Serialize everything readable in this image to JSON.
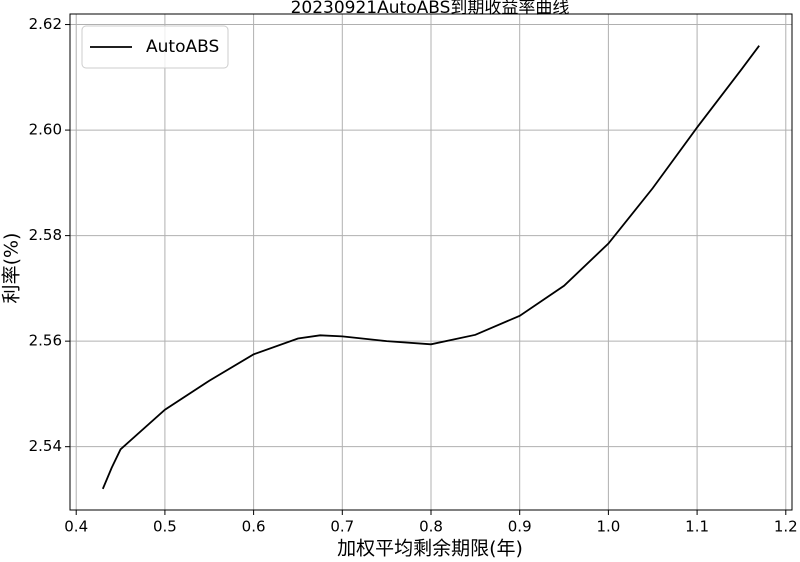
{
  "chart_data": {
    "type": "line",
    "title": "20230921AutoABS到期收益率曲线",
    "x_label": "加权平均剩余期限(年)",
    "y_label": "利率(%)",
    "x": [
      0.43,
      0.44,
      0.45,
      0.5,
      0.55,
      0.6,
      0.65,
      0.675,
      0.7,
      0.75,
      0.8,
      0.85,
      0.9,
      0.95,
      1.0,
      1.05,
      1.1,
      1.15,
      1.17
    ],
    "series": [
      {
        "name": "AutoABS",
        "color": "#000000",
        "values": [
          2.532,
          2.536,
          2.5395,
          2.547,
          2.5525,
          2.5575,
          2.5605,
          2.5611,
          2.5609,
          2.56,
          2.5594,
          2.5612,
          2.5648,
          2.5705,
          2.5785,
          2.589,
          2.6005,
          2.6115,
          2.616
        ]
      }
    ],
    "xlim": [
      0.393,
      1.207
    ],
    "ylim": [
      2.528,
      2.622
    ],
    "xticks": [
      0.4,
      0.5,
      0.6,
      0.7,
      0.8,
      0.9,
      {
        "value": 1,
        "label": "1.0"
      },
      1.1,
      1.2
    ],
    "yticks": [
      2.54,
      2.56,
      2.58,
      {
        "value": 2.6,
        "label": "2.60"
      },
      2.62
    ],
    "grid": true,
    "legend": "upper-left"
  }
}
